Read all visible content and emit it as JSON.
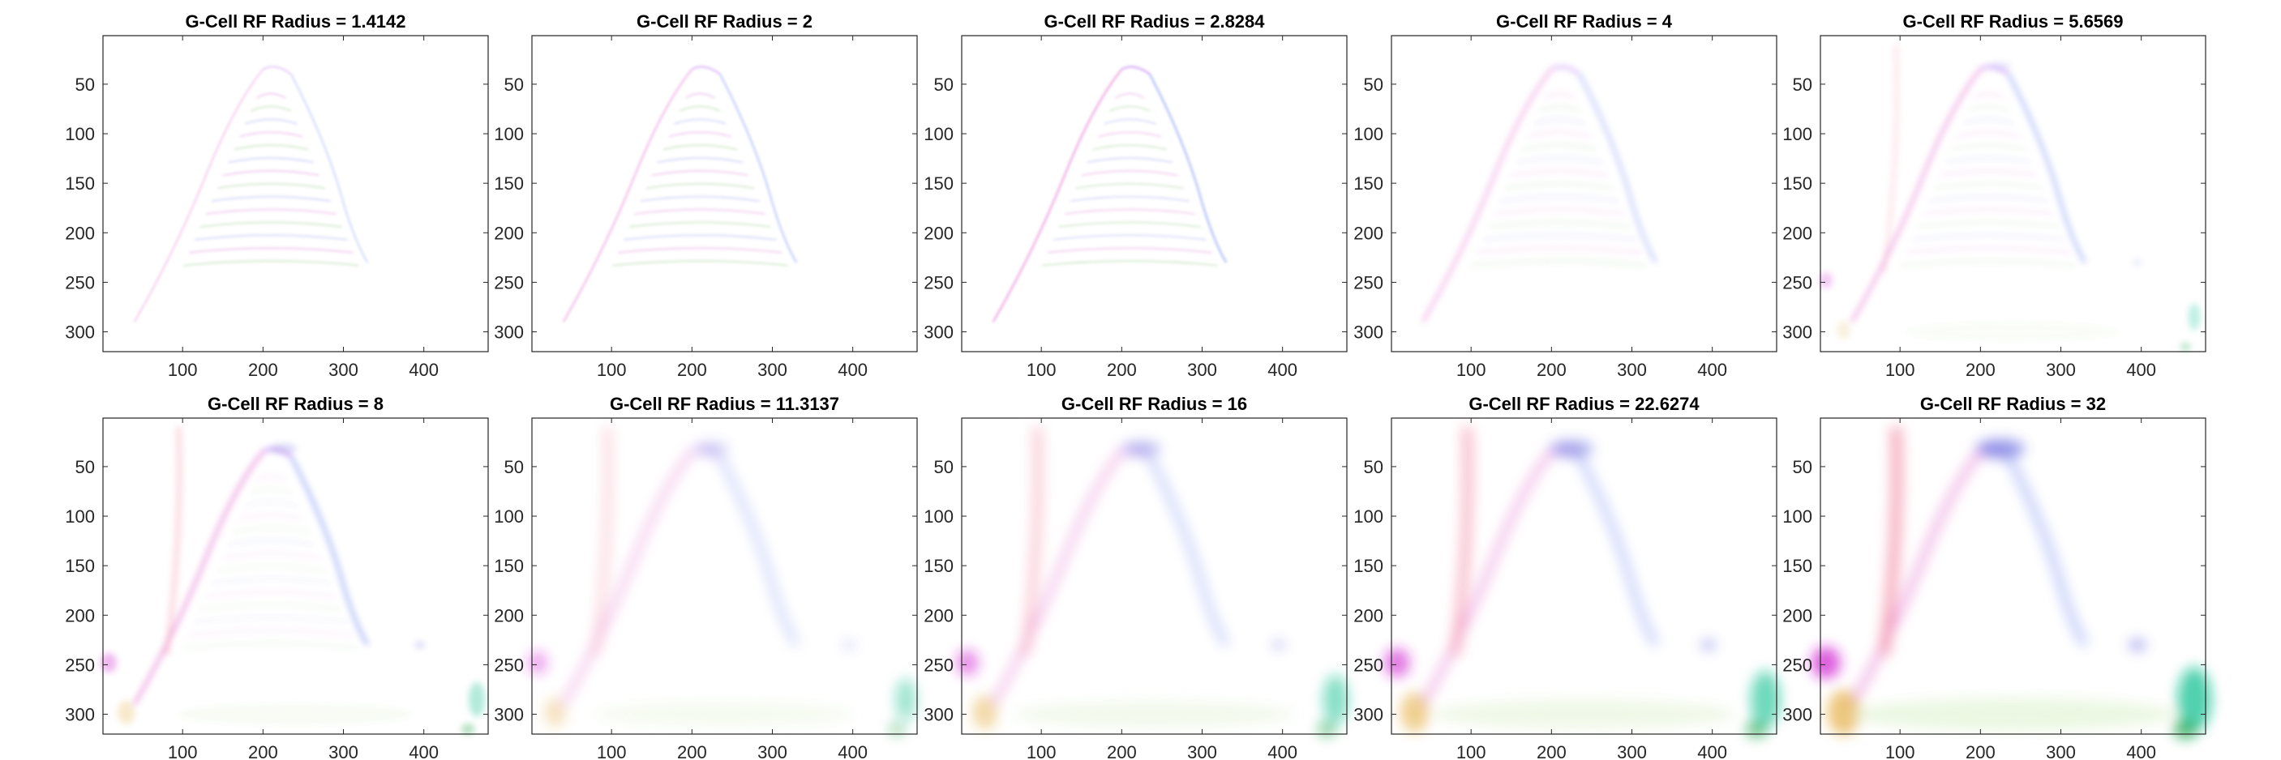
{
  "chart_data": [
    {
      "type": "heatmap",
      "title": "G-Cell RF Radius = 1.4142",
      "xticks": [
        100,
        200,
        300,
        400
      ],
      "yticks": [
        50,
        100,
        150,
        200,
        250,
        300
      ],
      "xlim": [
        1,
        480
      ],
      "ylim": [
        1,
        320
      ],
      "y_direction": "reverse"
    },
    {
      "type": "heatmap",
      "title": "G-Cell RF Radius = 2",
      "xticks": [
        100,
        200,
        300,
        400
      ],
      "yticks": [
        50,
        100,
        150,
        200,
        250,
        300
      ],
      "xlim": [
        1,
        480
      ],
      "ylim": [
        1,
        320
      ],
      "y_direction": "reverse"
    },
    {
      "type": "heatmap",
      "title": "G-Cell RF Radius = 2.8284",
      "xticks": [
        100,
        200,
        300,
        400
      ],
      "yticks": [
        50,
        100,
        150,
        200,
        250,
        300
      ],
      "xlim": [
        1,
        480
      ],
      "ylim": [
        1,
        320
      ],
      "y_direction": "reverse"
    },
    {
      "type": "heatmap",
      "title": "G-Cell RF Radius = 4",
      "xticks": [
        100,
        200,
        300,
        400
      ],
      "yticks": [
        50,
        100,
        150,
        200,
        250,
        300
      ],
      "xlim": [
        1,
        480
      ],
      "ylim": [
        1,
        320
      ],
      "y_direction": "reverse"
    },
    {
      "type": "heatmap",
      "title": "G-Cell RF Radius = 5.6569",
      "xticks": [
        100,
        200,
        300,
        400
      ],
      "yticks": [
        50,
        100,
        150,
        200,
        250,
        300
      ],
      "xlim": [
        1,
        480
      ],
      "ylim": [
        1,
        320
      ],
      "y_direction": "reverse"
    },
    {
      "type": "heatmap",
      "title": "G-Cell RF Radius = 8",
      "xticks": [
        100,
        200,
        300,
        400
      ],
      "yticks": [
        50,
        100,
        150,
        200,
        250,
        300
      ],
      "xlim": [
        1,
        480
      ],
      "ylim": [
        1,
        320
      ],
      "y_direction": "reverse"
    },
    {
      "type": "heatmap",
      "title": "G-Cell RF Radius = 11.3137",
      "xticks": [
        100,
        200,
        300,
        400
      ],
      "yticks": [
        50,
        100,
        150,
        200,
        250,
        300
      ],
      "xlim": [
        1,
        480
      ],
      "ylim": [
        1,
        320
      ],
      "y_direction": "reverse"
    },
    {
      "type": "heatmap",
      "title": "G-Cell RF Radius = 16",
      "xticks": [
        100,
        200,
        300,
        400
      ],
      "yticks": [
        50,
        100,
        150,
        200,
        250,
        300
      ],
      "xlim": [
        1,
        480
      ],
      "ylim": [
        1,
        320
      ],
      "y_direction": "reverse"
    },
    {
      "type": "heatmap",
      "title": "G-Cell RF Radius = 22.6274",
      "xticks": [
        100,
        200,
        300,
        400
      ],
      "yticks": [
        50,
        100,
        150,
        200,
        250,
        300
      ],
      "xlim": [
        1,
        480
      ],
      "ylim": [
        1,
        320
      ],
      "y_direction": "reverse"
    },
    {
      "type": "heatmap",
      "title": "G-Cell RF Radius = 32",
      "xticks": [
        100,
        200,
        300,
        400
      ],
      "yticks": [
        50,
        100,
        150,
        200,
        250,
        300
      ],
      "xlim": [
        1,
        480
      ],
      "ylim": [
        1,
        320
      ],
      "y_direction": "reverse"
    }
  ],
  "colors": {
    "axis": "#262626",
    "background": "#ffffff"
  }
}
